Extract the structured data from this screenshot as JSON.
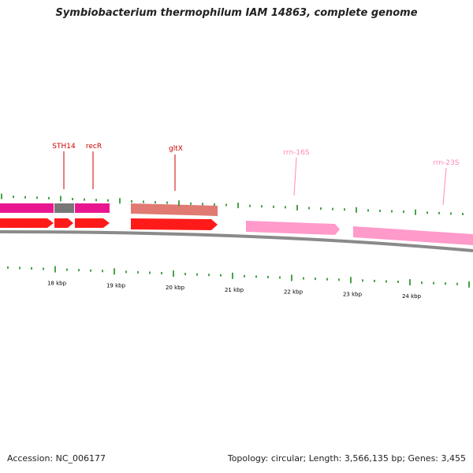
{
  "title": "Symbiobacterium thermophilum IAM 14863, complete genome",
  "footer": {
    "accession": "Accession: NC_006177",
    "summary": "Topology: circular; Length: 3,566,135 bp; Genes: 3,455"
  },
  "colors": {
    "backbone": "#8a8a8a",
    "tick": "#1a8a1a",
    "cds_forward": "#ff1a1a",
    "gene_magenta": "#e8178f",
    "gene_grey": "#777777",
    "gene_salmon": "#e07a72",
    "rrna": "#ff9acb",
    "label_red": "#cc0000",
    "label_pink": "#ff88bb"
  },
  "genome_view": {
    "scale_labels": [
      "18 kbp",
      "19 kbp",
      "20 kbp",
      "21 kbp",
      "22 kbp",
      "23 kbp",
      "24 kbp"
    ],
    "features": [
      {
        "label": "STH14",
        "type": "gene"
      },
      {
        "label": "recR",
        "type": "gene"
      },
      {
        "label": "gltX",
        "type": "gene"
      },
      {
        "label": "rrn-16S",
        "type": "rRNA"
      },
      {
        "label": "rrn-23S",
        "type": "rRNA"
      }
    ]
  }
}
